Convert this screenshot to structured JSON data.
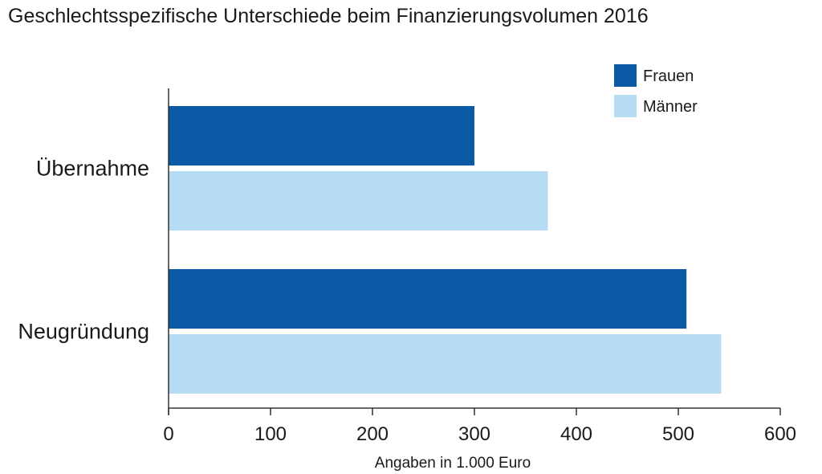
{
  "chart_data": {
    "type": "bar",
    "orientation": "horizontal",
    "title": "Geschlechtsspezifische Unterschiede beim Finanzierungsvolumen 2016",
    "xlabel": "Angaben in 1.000 Euro",
    "ylabel": "",
    "categories": [
      "Übernahme",
      "Neugründung"
    ],
    "series": [
      {
        "name": "Frauen",
        "color": "#0a5aa6",
        "values": [
          300,
          508
        ]
      },
      {
        "name": "Männer",
        "color": "#b5dcf2",
        "values": [
          372,
          542
        ]
      }
    ],
    "xlim": [
      0,
      600
    ],
    "xticks": [
      "0",
      "100",
      "200",
      "300",
      "400",
      "500",
      "600"
    ],
    "grid": false,
    "legend_position": "top-right"
  }
}
